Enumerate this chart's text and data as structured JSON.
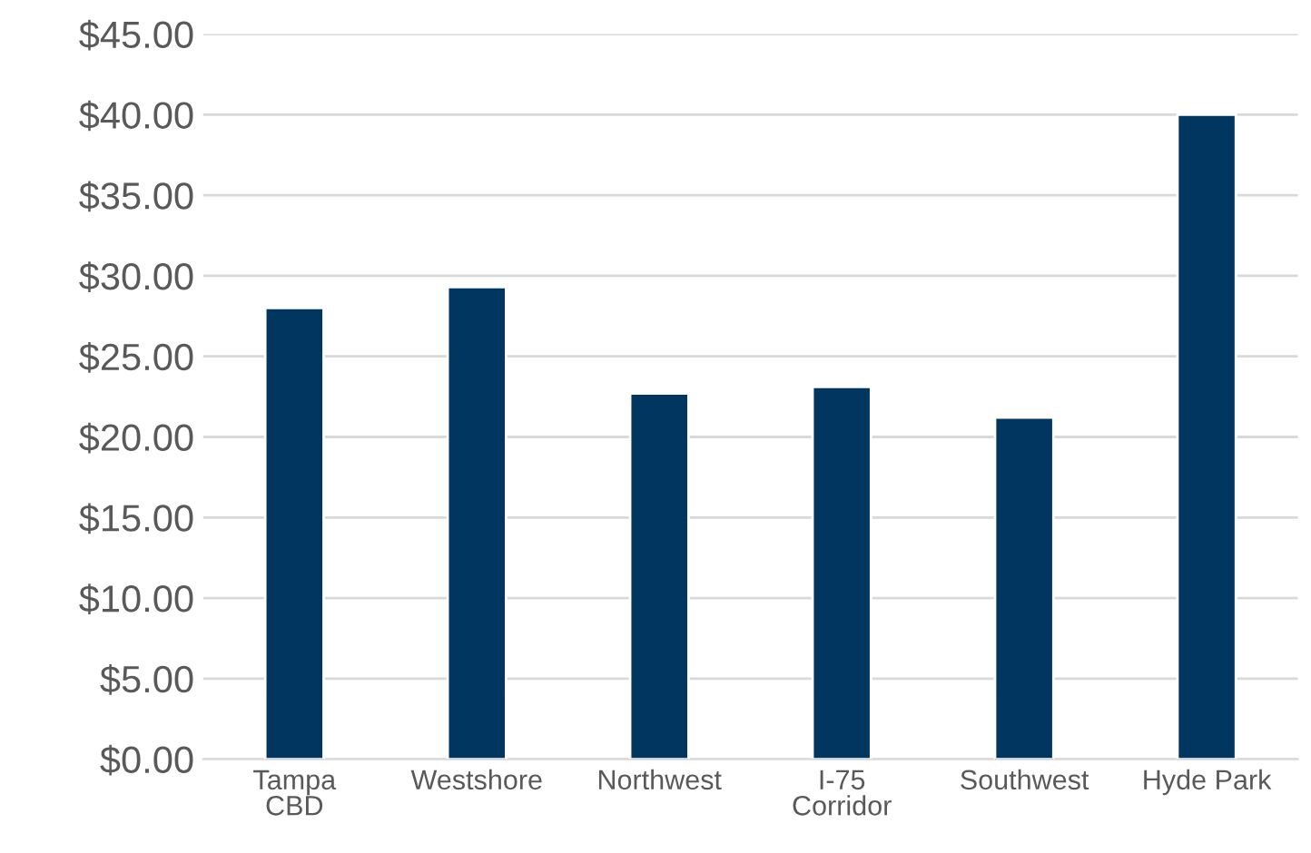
{
  "chart_data": {
    "type": "bar",
    "categories": [
      "Tampa\nCBD",
      "Westshore",
      "Northwest",
      "I-75\nCorridor",
      "Southwest",
      "Hyde Park"
    ],
    "values": [
      28.0,
      29.3,
      22.7,
      23.1,
      21.2,
      40.0
    ],
    "color": "#003660",
    "ylim": [
      0,
      45
    ],
    "yticks": [
      {
        "value": 0,
        "label": "$0.00"
      },
      {
        "value": 5,
        "label": "$5.00"
      },
      {
        "value": 10,
        "label": "$10.00"
      },
      {
        "value": 15,
        "label": "$15.00"
      },
      {
        "value": 20,
        "label": "$20.00"
      },
      {
        "value": 25,
        "label": "$25.00"
      },
      {
        "value": 30,
        "label": "$30.00"
      },
      {
        "value": 35,
        "label": "$35.00"
      },
      {
        "value": 40,
        "label": "$40.00"
      },
      {
        "value": 45,
        "label": "$45.00"
      }
    ],
    "grid": "y"
  }
}
